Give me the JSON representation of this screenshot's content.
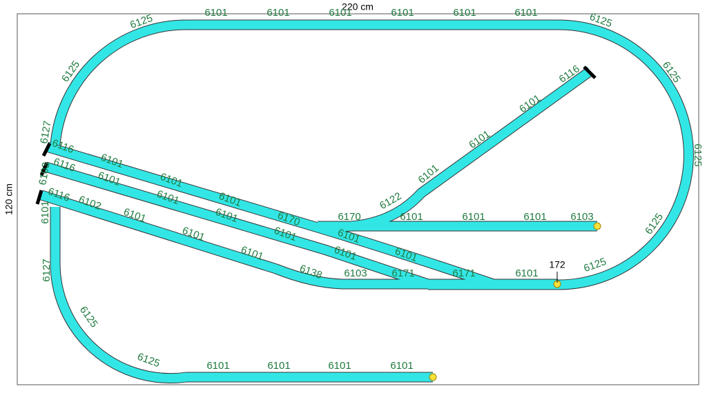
{
  "board": {
    "width_label": "220 cm",
    "height_label": "120 cm",
    "marker_label": "172"
  },
  "pieces": [
    "6125",
    "6101",
    "6101",
    "6101",
    "6101",
    "6101",
    "6101",
    "6125",
    "6125",
    "6125",
    "6125",
    "6125",
    "6125",
    "6127",
    "6101",
    "6127",
    "6125",
    "6125",
    "6101",
    "6101",
    "6101",
    "6101",
    "6116",
    "6101",
    "6101",
    "6101",
    "6170",
    "6101",
    "6101",
    "6171",
    "6101",
    "6116",
    "6103",
    "6101",
    "6101",
    "6101",
    "6101",
    "6101",
    "6171",
    "6116",
    "6102",
    "6101",
    "6101",
    "6101",
    "6138",
    "6103",
    "6170",
    "6101",
    "6101",
    "6101",
    "6103",
    "6122",
    "6101",
    "6101",
    "6101",
    "6116"
  ]
}
